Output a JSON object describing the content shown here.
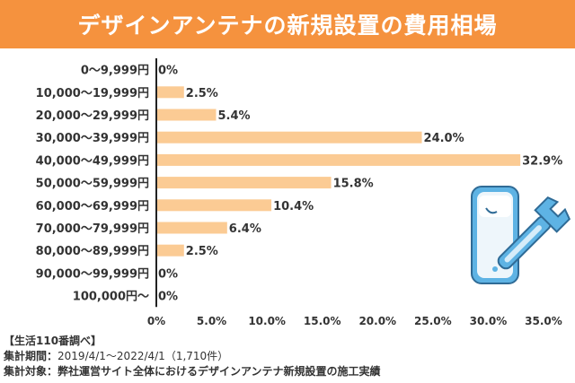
{
  "title": "デザインアンテナの新規設置の費用相場",
  "chart_data": {
    "type": "bar",
    "orientation": "horizontal",
    "title": "デザインアンテナの新規設置の費用相場",
    "categories": [
      "0～9,999円",
      "10,000～19,999円",
      "20,000～29,999円",
      "30,000～39,999円",
      "40,000～49,999円",
      "50,000～59,999円",
      "60,000～69,999円",
      "70,000～79,999円",
      "80,000～89,999円",
      "90,000～99,999円",
      "100,000円～"
    ],
    "values": [
      0,
      2.5,
      5.4,
      24.0,
      32.9,
      15.8,
      10.4,
      6.4,
      2.5,
      0,
      0
    ],
    "data_labels": [
      "0%",
      "2.5%",
      "5.4%",
      "24.0%",
      "32.9%",
      "15.8%",
      "10.4%",
      "6.4%",
      "2.5%",
      "0%",
      "0%"
    ],
    "xlim": [
      0,
      35
    ],
    "xticks": [
      "0%",
      "5.0%",
      "10.0%",
      "15.0%",
      "20.0%",
      "25.0%",
      "30.0%",
      "35.0%"
    ],
    "grid": false,
    "bar_color": "#fbcb94",
    "label_color": "#333333"
  },
  "footer": {
    "source": "【生活110番調べ】",
    "period_label": "集計期間",
    "period_value": "2019/4/1～2022/4/1（1,710件）",
    "target_label": "集計対象",
    "target_value": "弊社運営サイト全体におけるデザインアンテナ新規設置の施工実績"
  },
  "colors": {
    "title_bg": "#f5923e",
    "illustration_blue": "#5eb3e4",
    "illustration_light": "#eef6fb"
  },
  "illustration": {
    "icons": [
      "design-antenna-icon",
      "wrench-icon"
    ]
  }
}
